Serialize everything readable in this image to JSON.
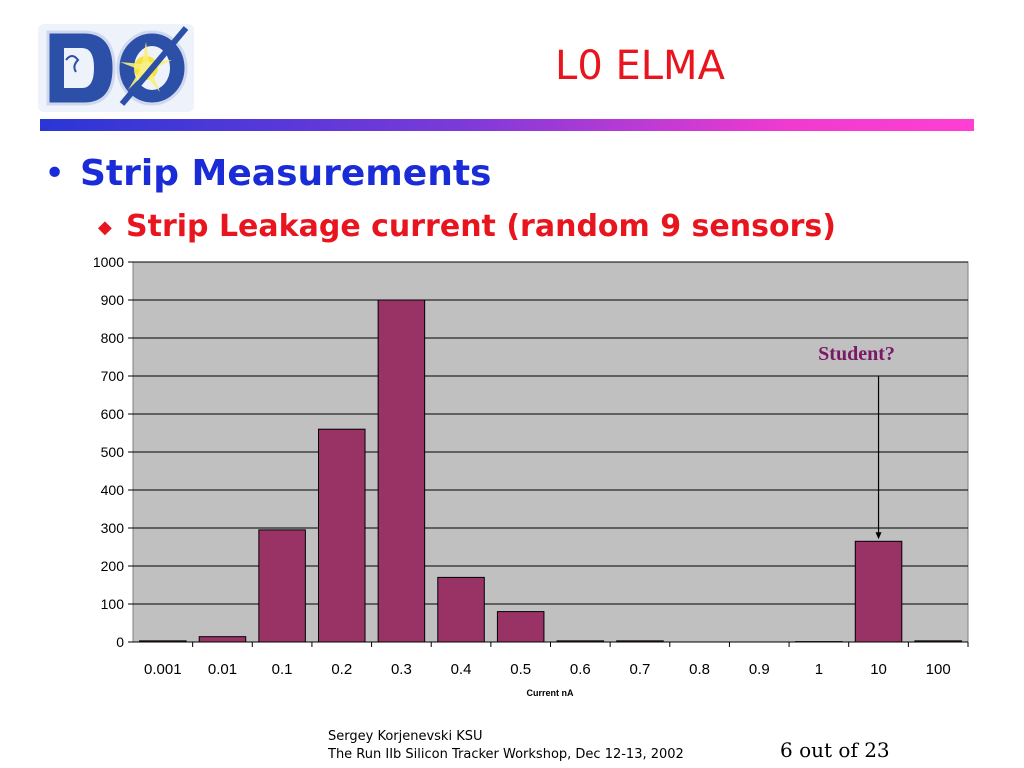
{
  "slide": {
    "title": "L0 ELMA",
    "bullet1": "Strip Measurements",
    "bullet2": "Strip Leakage current (random 9 sensors)",
    "footer_line1": "Sergey Korjenevski KSU",
    "footer_line2": "The Run IIb Silicon Tracker Workshop,  Dec 12-13, 2002",
    "page": "6 out of 23"
  },
  "logo": {
    "name": "d0-logo-icon",
    "colors": {
      "blue": "#2c4fa8",
      "star": "#f5e23a"
    }
  },
  "colors": {
    "title": "#e8141e",
    "bullet1": "#1a2bd8",
    "bar": "#993366",
    "plot_bg": "#c0c0c0",
    "annotation": "#7a1a66"
  },
  "chart_data": {
    "type": "bar",
    "categories": [
      "0.001",
      "0.01",
      "0.1",
      "0.2",
      "0.3",
      "0.4",
      "0.5",
      "0.6",
      "0.7",
      "0.8",
      "0.9",
      "1",
      "10",
      "100"
    ],
    "values": [
      3,
      14,
      295,
      560,
      900,
      170,
      80,
      3,
      3,
      0,
      0,
      1,
      265,
      3
    ],
    "title": "",
    "xlabel": "Current nA",
    "ylabel": "",
    "ylim": [
      0,
      1000
    ],
    "yticks": [
      "0",
      "100",
      "200",
      "300",
      "400",
      "500",
      "600",
      "700",
      "800",
      "900",
      "1000"
    ],
    "grid": true,
    "annotation": {
      "text": "Student?",
      "category": "10"
    }
  }
}
